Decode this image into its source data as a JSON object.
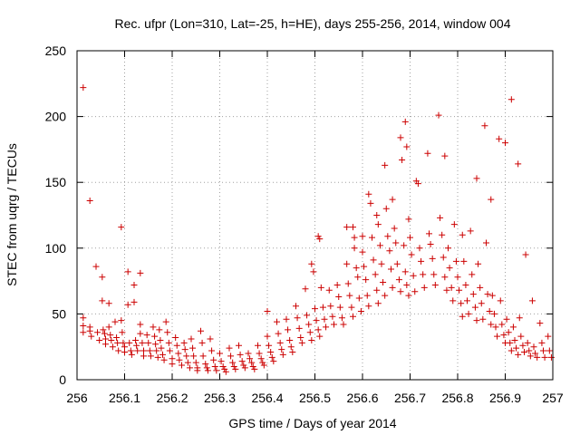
{
  "chart_data": {
    "type": "scatter",
    "title": "Rec. ufpr (Lon=310, Lat=-25, h=HE), days 255-256, 2014, window 004",
    "xlabel": "GPS time / Days of year 2014",
    "ylabel": "STEC from uqrg / TECUs",
    "xlim": [
      256,
      257
    ],
    "ylim": [
      0,
      250
    ],
    "x_ticks": [
      "256",
      "256.1",
      "256.2",
      "256.3",
      "256.4",
      "256.5",
      "256.6",
      "256.7",
      "256.8",
      "256.9",
      "257"
    ],
    "y_ticks": [
      "0",
      "50",
      "100",
      "150",
      "200",
      "250"
    ],
    "grid": true,
    "marker": "plus",
    "color": "#cc0000",
    "series": [
      {
        "points": [
          [
            256.013,
            222
          ],
          [
            256.013,
            47
          ],
          [
            256.013,
            41
          ],
          [
            256.013,
            36
          ],
          [
            256.027,
            136
          ],
          [
            256.027,
            40
          ],
          [
            256.027,
            37
          ],
          [
            256.03,
            33
          ],
          [
            256.04,
            86
          ],
          [
            256.043,
            36
          ],
          [
            256.047,
            30
          ],
          [
            256.053,
            78
          ],
          [
            256.053,
            60
          ],
          [
            256.055,
            38
          ],
          [
            256.058,
            35
          ],
          [
            256.06,
            31
          ],
          [
            256.06,
            27
          ],
          [
            256.067,
            58
          ],
          [
            256.067,
            40
          ],
          [
            256.07,
            34
          ],
          [
            256.072,
            30
          ],
          [
            256.075,
            25
          ],
          [
            256.08,
            44
          ],
          [
            256.083,
            32
          ],
          [
            256.085,
            28
          ],
          [
            256.087,
            22
          ],
          [
            256.093,
            116
          ],
          [
            256.093,
            45
          ],
          [
            256.095,
            36
          ],
          [
            256.097,
            28
          ],
          [
            256.1,
            25
          ],
          [
            256.1,
            21
          ],
          [
            256.107,
            82
          ],
          [
            256.107,
            57
          ],
          [
            256.11,
            28
          ],
          [
            256.113,
            22
          ],
          [
            256.115,
            19
          ],
          [
            256.12,
            72
          ],
          [
            256.12,
            59
          ],
          [
            256.123,
            30
          ],
          [
            256.125,
            26
          ],
          [
            256.127,
            22
          ],
          [
            256.133,
            81
          ],
          [
            256.133,
            42
          ],
          [
            256.133,
            35
          ],
          [
            256.137,
            28
          ],
          [
            256.14,
            22
          ],
          [
            256.14,
            18
          ],
          [
            256.147,
            34
          ],
          [
            256.15,
            28
          ],
          [
            256.153,
            22
          ],
          [
            256.155,
            18
          ],
          [
            256.16,
            40
          ],
          [
            256.163,
            33
          ],
          [
            256.165,
            27
          ],
          [
            256.167,
            22
          ],
          [
            256.17,
            17
          ],
          [
            256.173,
            38
          ],
          [
            256.175,
            30
          ],
          [
            256.177,
            24
          ],
          [
            256.18,
            19
          ],
          [
            256.183,
            15
          ],
          [
            256.187,
            44
          ],
          [
            256.19,
            36
          ],
          [
            256.193,
            28
          ],
          [
            256.195,
            22
          ],
          [
            256.2,
            16
          ],
          [
            256.2,
            12
          ],
          [
            256.207,
            32
          ],
          [
            256.21,
            26
          ],
          [
            256.213,
            20
          ],
          [
            256.215,
            15
          ],
          [
            256.22,
            11
          ],
          [
            256.225,
            28
          ],
          [
            256.227,
            23
          ],
          [
            256.23,
            18
          ],
          [
            256.233,
            13
          ],
          [
            256.237,
            9
          ],
          [
            256.24,
            31
          ],
          [
            256.243,
            24
          ],
          [
            256.245,
            18
          ],
          [
            256.25,
            13
          ],
          [
            256.253,
            9
          ],
          [
            256.253,
            7
          ],
          [
            256.26,
            37
          ],
          [
            256.263,
            28
          ],
          [
            256.265,
            18
          ],
          [
            256.27,
            12
          ],
          [
            256.273,
            9
          ],
          [
            256.275,
            7
          ],
          [
            256.28,
            31
          ],
          [
            256.283,
            22
          ],
          [
            256.287,
            15
          ],
          [
            256.29,
            10
          ],
          [
            256.293,
            7
          ],
          [
            256.3,
            20
          ],
          [
            256.303,
            14
          ],
          [
            256.307,
            10
          ],
          [
            256.31,
            8
          ],
          [
            256.313,
            6
          ],
          [
            256.32,
            24
          ],
          [
            256.323,
            18
          ],
          [
            256.327,
            13
          ],
          [
            256.33,
            10
          ],
          [
            256.333,
            8
          ],
          [
            256.34,
            26
          ],
          [
            256.343,
            19
          ],
          [
            256.347,
            14
          ],
          [
            256.35,
            11
          ],
          [
            256.353,
            9
          ],
          [
            256.36,
            20
          ],
          [
            256.363,
            16
          ],
          [
            256.367,
            13
          ],
          [
            256.37,
            10
          ],
          [
            256.373,
            8
          ],
          [
            256.38,
            26
          ],
          [
            256.383,
            20
          ],
          [
            256.387,
            16
          ],
          [
            256.39,
            13
          ],
          [
            256.393,
            11
          ],
          [
            256.4,
            52
          ],
          [
            256.4,
            33
          ],
          [
            256.403,
            26
          ],
          [
            256.407,
            21
          ],
          [
            256.41,
            17
          ],
          [
            256.413,
            14
          ],
          [
            256.42,
            44
          ],
          [
            256.423,
            35
          ],
          [
            256.427,
            28
          ],
          [
            256.43,
            23
          ],
          [
            256.433,
            19
          ],
          [
            256.44,
            46
          ],
          [
            256.443,
            38
          ],
          [
            256.447,
            30
          ],
          [
            256.45,
            25
          ],
          [
            256.453,
            21
          ],
          [
            256.46,
            56
          ],
          [
            256.463,
            47
          ],
          [
            256.467,
            39
          ],
          [
            256.47,
            32
          ],
          [
            256.473,
            28
          ],
          [
            256.48,
            69
          ],
          [
            256.483,
            49
          ],
          [
            256.487,
            42
          ],
          [
            256.49,
            36
          ],
          [
            256.493,
            30
          ],
          [
            256.493,
            88
          ],
          [
            256.497,
            82
          ],
          [
            256.5,
            54
          ],
          [
            256.503,
            45
          ],
          [
            256.507,
            38
          ],
          [
            256.51,
            33
          ],
          [
            256.507,
            109
          ],
          [
            256.51,
            107
          ],
          [
            256.513,
            70
          ],
          [
            256.517,
            55
          ],
          [
            256.52,
            46
          ],
          [
            256.523,
            40
          ],
          [
            256.53,
            68
          ],
          [
            256.533,
            56
          ],
          [
            256.537,
            48
          ],
          [
            256.54,
            42
          ],
          [
            256.547,
            72
          ],
          [
            256.55,
            63
          ],
          [
            256.553,
            55
          ],
          [
            256.557,
            47
          ],
          [
            256.56,
            42
          ],
          [
            256.567,
            116
          ],
          [
            256.567,
            88
          ],
          [
            256.57,
            73
          ],
          [
            256.573,
            64
          ],
          [
            256.577,
            55
          ],
          [
            256.58,
            48
          ],
          [
            256.58,
            116
          ],
          [
            256.583,
            108
          ],
          [
            256.583,
            100
          ],
          [
            256.587,
            85
          ],
          [
            256.59,
            78
          ],
          [
            256.593,
            62
          ],
          [
            256.597,
            52
          ],
          [
            256.6,
            109
          ],
          [
            256.6,
            97
          ],
          [
            256.603,
            86
          ],
          [
            256.607,
            76
          ],
          [
            256.61,
            64
          ],
          [
            256.613,
            56
          ],
          [
            256.613,
            141
          ],
          [
            256.617,
            134
          ],
          [
            256.62,
            108
          ],
          [
            256.623,
            91
          ],
          [
            256.627,
            80
          ],
          [
            256.63,
            68
          ],
          [
            256.633,
            58
          ],
          [
            256.63,
            125
          ],
          [
            256.633,
            118
          ],
          [
            256.637,
            102
          ],
          [
            256.64,
            88
          ],
          [
            256.643,
            74
          ],
          [
            256.647,
            64
          ],
          [
            256.647,
            163
          ],
          [
            256.65,
            130
          ],
          [
            256.653,
            109
          ],
          [
            256.657,
            98
          ],
          [
            256.66,
            84
          ],
          [
            256.663,
            70
          ],
          [
            256.663,
            137
          ],
          [
            256.667,
            115
          ],
          [
            256.67,
            104
          ],
          [
            256.673,
            88
          ],
          [
            256.677,
            76
          ],
          [
            256.68,
            67
          ],
          [
            256.68,
            184
          ],
          [
            256.683,
            167
          ],
          [
            256.687,
            102
          ],
          [
            256.69,
            82
          ],
          [
            256.693,
            72
          ],
          [
            256.697,
            64
          ],
          [
            256.69,
            196
          ],
          [
            256.693,
            177
          ],
          [
            256.697,
            122
          ],
          [
            256.7,
            108
          ],
          [
            256.703,
            95
          ],
          [
            256.707,
            79
          ],
          [
            256.71,
            67
          ],
          [
            256.713,
            151
          ],
          [
            256.717,
            149
          ],
          [
            256.72,
            100
          ],
          [
            256.723,
            90
          ],
          [
            256.727,
            80
          ],
          [
            256.73,
            70
          ],
          [
            256.737,
            172
          ],
          [
            256.74,
            111
          ],
          [
            256.743,
            103
          ],
          [
            256.747,
            92
          ],
          [
            256.75,
            80
          ],
          [
            256.753,
            72
          ],
          [
            256.76,
            201
          ],
          [
            256.763,
            123
          ],
          [
            256.767,
            110
          ],
          [
            256.77,
            93
          ],
          [
            256.773,
            78
          ],
          [
            256.777,
            68
          ],
          [
            256.773,
            170
          ],
          [
            256.78,
            100
          ],
          [
            256.783,
            85
          ],
          [
            256.787,
            70
          ],
          [
            256.79,
            60
          ],
          [
            256.793,
            118
          ],
          [
            256.797,
            90
          ],
          [
            256.8,
            78
          ],
          [
            256.803,
            68
          ],
          [
            256.807,
            58
          ],
          [
            256.81,
            48
          ],
          [
            256.81,
            110
          ],
          [
            256.813,
            90
          ],
          [
            256.817,
            72
          ],
          [
            256.82,
            60
          ],
          [
            256.823,
            50
          ],
          [
            256.827,
            113
          ],
          [
            256.83,
            80
          ],
          [
            256.833,
            65
          ],
          [
            256.837,
            55
          ],
          [
            256.84,
            45
          ],
          [
            256.84,
            153
          ],
          [
            256.843,
            88
          ],
          [
            256.847,
            70
          ],
          [
            256.85,
            58
          ],
          [
            256.853,
            46
          ],
          [
            256.857,
            193
          ],
          [
            256.86,
            104
          ],
          [
            256.863,
            65
          ],
          [
            256.867,
            52
          ],
          [
            256.87,
            42
          ],
          [
            256.87,
            137
          ],
          [
            256.873,
            64
          ],
          [
            256.877,
            50
          ],
          [
            256.88,
            40
          ],
          [
            256.883,
            33
          ],
          [
            256.887,
            183
          ],
          [
            256.89,
            60
          ],
          [
            256.893,
            42
          ],
          [
            256.897,
            34
          ],
          [
            256.9,
            28
          ],
          [
            256.9,
            180
          ],
          [
            256.903,
            46
          ],
          [
            256.907,
            36
          ],
          [
            256.91,
            28
          ],
          [
            256.913,
            22
          ],
          [
            256.913,
            213
          ],
          [
            256.917,
            40
          ],
          [
            256.92,
            30
          ],
          [
            256.923,
            24
          ],
          [
            256.927,
            19
          ],
          [
            256.927,
            164
          ],
          [
            256.93,
            47
          ],
          [
            256.933,
            33
          ],
          [
            256.937,
            26
          ],
          [
            256.94,
            21
          ],
          [
            256.943,
            95
          ],
          [
            256.947,
            28
          ],
          [
            256.95,
            22
          ],
          [
            256.953,
            18
          ],
          [
            256.957,
            60
          ],
          [
            256.96,
            25
          ],
          [
            256.963,
            20
          ],
          [
            256.967,
            17
          ],
          [
            256.973,
            43
          ],
          [
            256.977,
            28
          ],
          [
            256.98,
            22
          ],
          [
            256.983,
            17
          ],
          [
            256.99,
            33
          ],
          [
            256.993,
            22
          ],
          [
            256.997,
            17
          ]
        ]
      }
    ]
  }
}
